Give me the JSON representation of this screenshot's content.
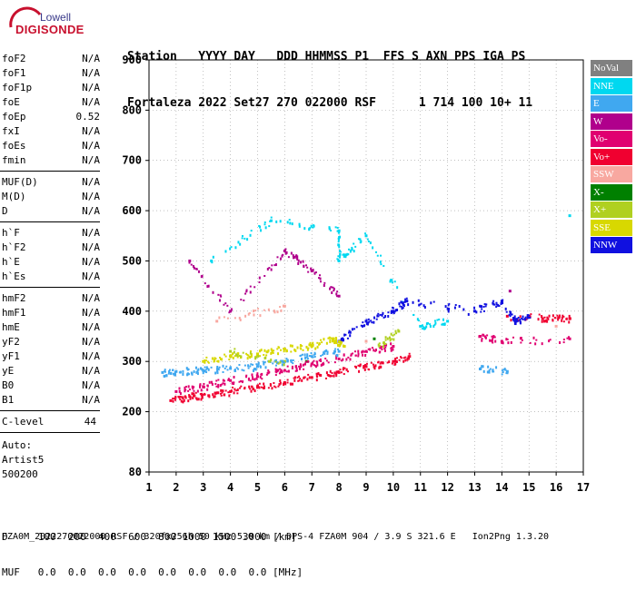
{
  "logo": {
    "brand": "Lowell",
    "product": "DIGISONDE"
  },
  "header": {
    "line1": "Station   YYYY DAY   DDD HHMMSS P1  FFS S AXN PPS IGA PS",
    "line2": "Fortaleza 2022 Set27 270 022000 RSF      1 714 100 10+ 11"
  },
  "params_group1": [
    {
      "name": "foF2",
      "value": "N/A"
    },
    {
      "name": "foF1",
      "value": "N/A"
    },
    {
      "name": "foF1p",
      "value": "N/A"
    },
    {
      "name": "foE",
      "value": "N/A"
    },
    {
      "name": "foEp",
      "value": "0.52"
    },
    {
      "name": "fxI",
      "value": "N/A"
    },
    {
      "name": "foEs",
      "value": "N/A"
    },
    {
      "name": "fmin",
      "value": "N/A"
    }
  ],
  "params_group2": [
    {
      "name": "MUF(D)",
      "value": "N/A"
    },
    {
      "name": "M(D)",
      "value": "N/A"
    },
    {
      "name": "D",
      "value": "N/A"
    }
  ],
  "params_group3": [
    {
      "name": "h`F",
      "value": "N/A"
    },
    {
      "name": "h`F2",
      "value": "N/A"
    },
    {
      "name": "h`E",
      "value": "N/A"
    },
    {
      "name": "h`Es",
      "value": "N/A"
    }
  ],
  "params_group4": [
    {
      "name": "hmF2",
      "value": "N/A"
    },
    {
      "name": "hmF1",
      "value": "N/A"
    },
    {
      "name": "hmE",
      "value": "N/A"
    },
    {
      "name": "yF2",
      "value": "N/A"
    },
    {
      "name": "yF1",
      "value": "N/A"
    },
    {
      "name": "yE",
      "value": "N/A"
    },
    {
      "name": "B0",
      "value": "N/A"
    },
    {
      "name": "B1",
      "value": "N/A"
    }
  ],
  "clevel": {
    "name": "C-level",
    "value": "44"
  },
  "auto": {
    "line1": "Auto:",
    "line2": "Artist5",
    "line3": "500200"
  },
  "legend": [
    {
      "label": "NoVal",
      "color": "#808080"
    },
    {
      "label": "NNE",
      "color": "#00d8f0"
    },
    {
      "label": "E",
      "color": "#40a8f0"
    },
    {
      "label": "W",
      "color": "#b0008c"
    },
    {
      "label": "Vo-",
      "color": "#e00070"
    },
    {
      "label": "Vo+",
      "color": "#f00030"
    },
    {
      "label": "SSW",
      "color": "#f8a8a0"
    },
    {
      "label": "X-",
      "color": "#008000"
    },
    {
      "label": "X+",
      "color": "#b0d020"
    },
    {
      "label": "SSE",
      "color": "#d8d800"
    },
    {
      "label": "NNW",
      "color": "#1010e0"
    }
  ],
  "footer": {
    "d_line": "D     100  200  400  600  800 1000 1500 3000 [km]",
    "muf_line": "MUF   0.0  0.0  0.0  0.0  0.0  0.0  0.0  0.0 [MHz]",
    "file_line": "FZA0M_2022270022000.RSF / 320fx256h 50 kHz 5.0 km / DPS-4 FZA0M 904 / 3.9 S 321.6 E   Ion2Png 1.3.20"
  },
  "chart_data": {
    "type": "scatter",
    "title": "",
    "xlabel": "",
    "ylabel": "",
    "xlim": [
      1,
      17
    ],
    "ylim": [
      80,
      900
    ],
    "xticks": [
      1,
      2,
      3,
      4,
      5,
      6,
      7,
      8,
      9,
      10,
      11,
      12,
      13,
      14,
      15,
      16,
      17
    ],
    "yticks": [
      80,
      200,
      300,
      400,
      500,
      600,
      700,
      800,
      900
    ],
    "grid": true,
    "legend_position": "right",
    "series": [
      {
        "name": "Vo+",
        "color": "#f00030",
        "points": [
          [
            1.8,
            222
          ],
          [
            2.5,
            230
          ],
          [
            3.2,
            232
          ],
          [
            4.0,
            240
          ],
          [
            5.0,
            250
          ],
          [
            6.0,
            258
          ],
          [
            7.0,
            268
          ],
          [
            8.0,
            278
          ],
          [
            9.0,
            290
          ],
          [
            10.0,
            300
          ],
          [
            10.6,
            310
          ],
          [
            15.5,
            385
          ],
          [
            16.5,
            385
          ],
          [
            14.2,
            390
          ]
        ]
      },
      {
        "name": "Vo-",
        "color": "#e00070",
        "points": [
          [
            2.0,
            240
          ],
          [
            3.0,
            250
          ],
          [
            4.0,
            262
          ],
          [
            5.0,
            270
          ],
          [
            6.0,
            282
          ],
          [
            7.0,
            295
          ],
          [
            8.0,
            305
          ],
          [
            9.0,
            320
          ],
          [
            10.0,
            330
          ],
          [
            13.2,
            350
          ],
          [
            14.0,
            340
          ],
          [
            16.5,
            345
          ]
        ]
      },
      {
        "name": "E",
        "color": "#40a8f0",
        "points": [
          [
            1.5,
            278
          ],
          [
            2.0,
            280
          ],
          [
            3.0,
            282
          ],
          [
            4.0,
            286
          ],
          [
            5.0,
            290
          ],
          [
            6.0,
            300
          ],
          [
            7.0,
            310
          ],
          [
            8.0,
            320
          ],
          [
            13.2,
            285
          ],
          [
            14.2,
            280
          ]
        ]
      },
      {
        "name": "NNE",
        "color": "#00d8f0",
        "points": [
          [
            3.3,
            500
          ],
          [
            5.5,
            580
          ],
          [
            8.0,
            560
          ],
          [
            8.0,
            500
          ],
          [
            9.0,
            550
          ],
          [
            11.0,
            370
          ],
          [
            12.0,
            380
          ],
          [
            16.5,
            590
          ]
        ]
      },
      {
        "name": "SSE",
        "color": "#d8d800",
        "points": [
          [
            3.0,
            300
          ],
          [
            4.0,
            310
          ],
          [
            5.0,
            315
          ],
          [
            6.0,
            325
          ],
          [
            7.0,
            330
          ],
          [
            7.8,
            345
          ],
          [
            8.2,
            330
          ]
        ]
      },
      {
        "name": "NNW",
        "color": "#1010e0",
        "points": [
          [
            8.0,
            340
          ],
          [
            9.0,
            380
          ],
          [
            10.0,
            400
          ],
          [
            10.5,
            420
          ],
          [
            13.0,
            400
          ],
          [
            14.0,
            420
          ],
          [
            14.5,
            380
          ],
          [
            15.0,
            390
          ]
        ]
      },
      {
        "name": "W",
        "color": "#b0008c",
        "points": [
          [
            2.5,
            500
          ],
          [
            4.0,
            400
          ],
          [
            6.0,
            520
          ],
          [
            7.0,
            480
          ],
          [
            8.0,
            430
          ],
          [
            14.3,
            440
          ]
        ]
      },
      {
        "name": "X+",
        "color": "#b0d020",
        "points": [
          [
            4.0,
            320
          ],
          [
            6.0,
            300
          ],
          [
            9.5,
            330
          ],
          [
            10.2,
            360
          ]
        ]
      },
      {
        "name": "SSW",
        "color": "#f8a8a0",
        "points": [
          [
            3.5,
            380
          ],
          [
            6.0,
            410
          ],
          [
            9.0,
            340
          ],
          [
            16.0,
            370
          ]
        ]
      },
      {
        "name": "X-",
        "color": "#008000",
        "points": [
          [
            6.8,
            300
          ],
          [
            9.3,
            345
          ]
        ]
      }
    ]
  }
}
